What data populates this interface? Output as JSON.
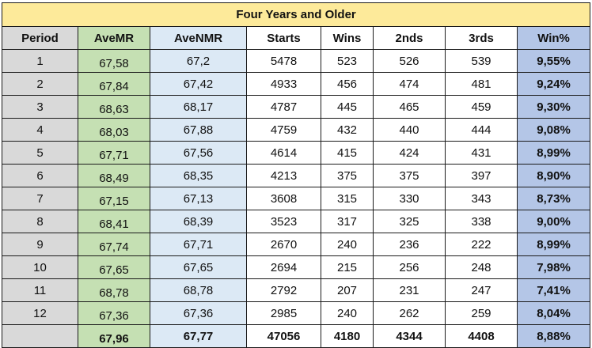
{
  "table": {
    "title": "Four Years and Older",
    "headers": [
      "Period",
      "AveMR",
      "AveNMR",
      "Starts",
      "Wins",
      "2nds",
      "3rds",
      "Win%"
    ],
    "rows": [
      [
        "1",
        "67,58",
        "67,2",
        "5478",
        "523",
        "526",
        "539",
        "9,55%"
      ],
      [
        "2",
        "67,84",
        "67,42",
        "4933",
        "456",
        "474",
        "481",
        "9,24%"
      ],
      [
        "3",
        "68,63",
        "68,17",
        "4787",
        "445",
        "465",
        "459",
        "9,30%"
      ],
      [
        "4",
        "68,03",
        "67,88",
        "4759",
        "432",
        "440",
        "444",
        "9,08%"
      ],
      [
        "5",
        "67,71",
        "67,56",
        "4614",
        "415",
        "424",
        "431",
        "8,99%"
      ],
      [
        "6",
        "68,49",
        "68,35",
        "4213",
        "375",
        "375",
        "397",
        "8,90%"
      ],
      [
        "7",
        "67,15",
        "67,13",
        "3608",
        "315",
        "330",
        "343",
        "8,73%"
      ],
      [
        "8",
        "68,41",
        "68,39",
        "3523",
        "317",
        "325",
        "338",
        "9,00%"
      ],
      [
        "9",
        "67,74",
        "67,71",
        "2670",
        "240",
        "236",
        "222",
        "8,99%"
      ],
      [
        "10",
        "67,65",
        "67,65",
        "2694",
        "215",
        "256",
        "248",
        "7,98%"
      ],
      [
        "11",
        "68,78",
        "68,78",
        "2792",
        "207",
        "231",
        "247",
        "7,41%"
      ],
      [
        "12",
        "67,36",
        "67,36",
        "2985",
        "240",
        "262",
        "259",
        "8,04%"
      ]
    ],
    "totals": [
      "",
      "67,96",
      "67,77",
      "47056",
      "4180",
      "4344",
      "4408",
      "8,88%"
    ]
  }
}
